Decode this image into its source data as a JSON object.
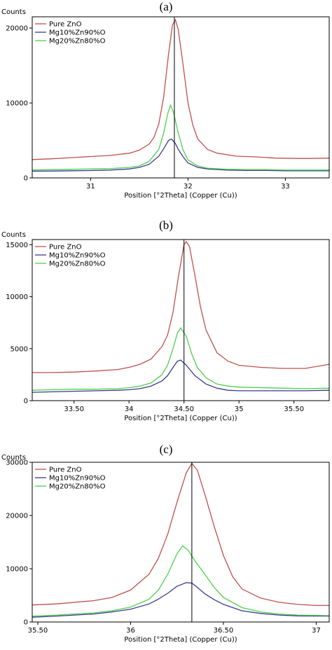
{
  "chart_data": [
    {
      "type": "line",
      "panel_label": "(a)",
      "ylabel": "Counts",
      "xlabel": "Position [°2Theta] (Copper (Cu))",
      "xlim": [
        30.4,
        33.45
      ],
      "ylim": [
        0,
        21500
      ],
      "xticks": [
        31,
        32,
        33
      ],
      "xtick_labels": [
        "31",
        "32",
        "33"
      ],
      "yticks": [
        0,
        10000,
        20000
      ],
      "ytick_labels": [
        "0",
        "10000",
        "20000"
      ],
      "reference_line_x": 31.86,
      "legend": "top-left",
      "series": [
        {
          "name": "Pure ZnO",
          "color": "#c0504d",
          "x": [
            30.4,
            30.6,
            30.8,
            31.0,
            31.2,
            31.4,
            31.5,
            31.6,
            31.65,
            31.7,
            31.75,
            31.8,
            31.84,
            31.87,
            31.9,
            31.95,
            32.0,
            32.05,
            32.1,
            32.2,
            32.3,
            32.5,
            32.7,
            32.9,
            33.1,
            33.3,
            33.45
          ],
          "y": [
            2450,
            2550,
            2700,
            2850,
            3000,
            3300,
            3700,
            4500,
            5400,
            7200,
            10800,
            16500,
            20400,
            21100,
            19800,
            15000,
            10000,
            7000,
            5200,
            3800,
            3300,
            2900,
            2800,
            2650,
            2600,
            2600,
            2650
          ]
        },
        {
          "name": "Mg10%Zn90%O",
          "color": "#3b3a8f",
          "x": [
            30.4,
            30.6,
            30.8,
            31.0,
            31.2,
            31.4,
            31.5,
            31.6,
            31.7,
            31.75,
            31.8,
            31.83,
            31.87,
            31.9,
            31.95,
            32.0,
            32.1,
            32.2,
            32.4,
            32.6,
            32.8,
            33.0,
            33.2,
            33.45
          ],
          "y": [
            900,
            920,
            950,
            980,
            1050,
            1200,
            1400,
            1800,
            2900,
            3900,
            5000,
            5200,
            4600,
            3800,
            2800,
            2000,
            1400,
            1200,
            1050,
            1000,
            1000,
            950,
            950,
            950
          ]
        },
        {
          "name": "Mg20%Zn80%O",
          "color": "#4cd04c",
          "x": [
            30.4,
            30.6,
            30.8,
            31.0,
            31.2,
            31.4,
            31.5,
            31.6,
            31.7,
            31.75,
            31.79,
            31.82,
            31.85,
            31.9,
            31.95,
            32.0,
            32.1,
            32.2,
            32.4,
            32.6,
            32.8,
            33.0,
            33.2,
            33.45
          ],
          "y": [
            1050,
            1100,
            1150,
            1200,
            1250,
            1400,
            1600,
            2200,
            3800,
            6000,
            8500,
            9700,
            8800,
            6000,
            3700,
            2400,
            1600,
            1300,
            1150,
            1100,
            1100,
            1050,
            1050,
            1050
          ]
        }
      ]
    },
    {
      "type": "line",
      "panel_label": "(b)",
      "ylabel": "Counts",
      "xlabel": "Position [°2Theta] (Copper (Cu))",
      "xlim": [
        33.12,
        35.82
      ],
      "ylim": [
        0,
        15500
      ],
      "xticks": [
        33.5,
        34,
        34.5,
        35,
        35.5
      ],
      "xtick_labels": [
        "33.50",
        "34",
        "34.50",
        "35",
        "35.50"
      ],
      "yticks": [
        0,
        5000,
        10000,
        15000
      ],
      "ytick_labels": [
        "0",
        "5000",
        "10000",
        "15000"
      ],
      "reference_line_x": 34.5,
      "legend": "top-left",
      "series": [
        {
          "name": "Pure ZnO",
          "color": "#c0504d",
          "x": [
            33.12,
            33.3,
            33.5,
            33.7,
            33.9,
            34.0,
            34.1,
            34.2,
            34.3,
            34.35,
            34.4,
            34.45,
            34.5,
            34.52,
            34.55,
            34.6,
            34.65,
            34.7,
            34.8,
            34.9,
            35.0,
            35.2,
            35.4,
            35.6,
            35.82
          ],
          "y": [
            2700,
            2700,
            2750,
            2850,
            3000,
            3200,
            3500,
            4000,
            5200,
            6300,
            8500,
            12000,
            15000,
            15300,
            14800,
            12000,
            9000,
            6800,
            4600,
            3800,
            3400,
            3200,
            3100,
            3100,
            3500
          ]
        },
        {
          "name": "Mg10%Zn90%O",
          "color": "#3b3a8f",
          "x": [
            33.12,
            33.3,
            33.5,
            33.7,
            33.9,
            34.0,
            34.1,
            34.2,
            34.3,
            34.35,
            34.4,
            34.44,
            34.47,
            34.52,
            34.6,
            34.7,
            34.8,
            34.9,
            35.0,
            35.2,
            35.4,
            35.6,
            35.82
          ],
          "y": [
            800,
            850,
            900,
            950,
            1000,
            1050,
            1150,
            1400,
            1900,
            2400,
            3200,
            3800,
            3900,
            3400,
            2400,
            1600,
            1200,
            1000,
            950,
            950,
            950,
            950,
            1000
          ]
        },
        {
          "name": "Mg20%Zn80%O",
          "color": "#4cd04c",
          "x": [
            33.12,
            33.3,
            33.5,
            33.7,
            33.9,
            34.0,
            34.1,
            34.2,
            34.3,
            34.35,
            34.4,
            34.44,
            34.47,
            34.52,
            34.57,
            34.62,
            34.7,
            34.8,
            34.9,
            35.0,
            35.2,
            35.4,
            35.6,
            35.82
          ],
          "y": [
            1000,
            1050,
            1100,
            1100,
            1150,
            1250,
            1400,
            1700,
            2500,
            3400,
            5000,
            6500,
            7000,
            6200,
            4500,
            3200,
            2200,
            1600,
            1400,
            1300,
            1250,
            1200,
            1150,
            1200
          ]
        }
      ]
    },
    {
      "type": "line",
      "panel_label": "(c)",
      "ylabel": "Counts",
      "xlabel": "Position [°2Theta] (Copper (Cu))",
      "xlim": [
        35.47,
        37.07
      ],
      "ylim": [
        0,
        30000
      ],
      "xticks": [
        35.5,
        36,
        36.5,
        37
      ],
      "xtick_labels": [
        "35.50",
        "36",
        "36.50",
        "37"
      ],
      "yticks": [
        0,
        10000,
        20000,
        30000
      ],
      "ytick_labels": [
        "0",
        "10000",
        "20000",
        "30000"
      ],
      "reference_line_x": 36.33,
      "legend": "top-left",
      "series": [
        {
          "name": "Pure ZnO",
          "color": "#c0504d",
          "x": [
            35.47,
            35.6,
            35.8,
            35.9,
            36.0,
            36.1,
            36.15,
            36.2,
            36.25,
            36.3,
            36.33,
            36.36,
            36.4,
            36.45,
            36.5,
            36.55,
            36.6,
            36.7,
            36.8,
            36.9,
            37.0,
            37.07
          ],
          "y": [
            3200,
            3400,
            4000,
            4600,
            6000,
            9000,
            12000,
            16500,
            22500,
            28000,
            29800,
            28500,
            24000,
            18000,
            12500,
            8500,
            6200,
            4500,
            3700,
            3300,
            3100,
            3100
          ]
        },
        {
          "name": "Mg10%Zn90%O",
          "color": "#3b3a8f",
          "x": [
            35.47,
            35.6,
            35.8,
            35.9,
            36.0,
            36.1,
            36.15,
            36.2,
            36.25,
            36.3,
            36.33,
            36.36,
            36.4,
            36.45,
            36.5,
            36.6,
            36.7,
            36.8,
            36.9,
            37.07
          ],
          "y": [
            900,
            1100,
            1500,
            1900,
            2400,
            3400,
            4300,
            5400,
            6700,
            7400,
            7300,
            6500,
            5300,
            4200,
            3300,
            2100,
            1600,
            1300,
            1150,
            1100
          ]
        },
        {
          "name": "Mg20%Zn80%O",
          "color": "#4cd04c",
          "x": [
            35.47,
            35.6,
            35.8,
            35.9,
            36.0,
            36.1,
            36.15,
            36.2,
            36.25,
            36.28,
            36.31,
            36.35,
            36.4,
            36.45,
            36.5,
            36.6,
            36.7,
            36.8,
            36.9,
            37.07
          ],
          "y": [
            1100,
            1300,
            1700,
            2100,
            2800,
            4300,
            6000,
            9000,
            12800,
            14300,
            13500,
            11300,
            9000,
            6500,
            4600,
            2700,
            1900,
            1500,
            1300,
            1200
          ]
        }
      ]
    }
  ]
}
